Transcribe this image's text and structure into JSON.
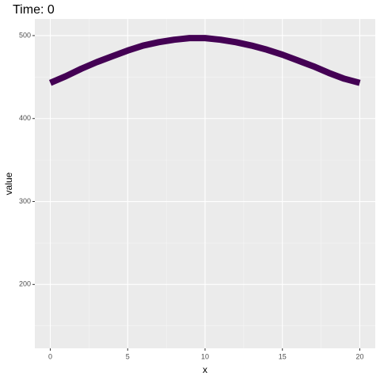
{
  "chart_data": {
    "type": "line",
    "title": "Time: 0",
    "x_label": "x",
    "y_label": "value",
    "x": [
      0,
      1,
      2,
      3,
      4,
      5,
      6,
      7,
      8,
      9,
      10,
      11,
      12,
      13,
      14,
      15,
      16,
      17,
      18,
      19,
      20
    ],
    "series": [
      {
        "color": "#440154",
        "values": [
          443,
          451,
          460,
          468,
          475,
          482,
          488,
          492,
          495,
          497,
          497,
          495,
          492,
          488,
          483,
          477,
          470,
          463,
          455,
          448,
          443
        ]
      }
    ],
    "xlim": [
      -1,
      21
    ],
    "ylim": [
      123,
      520
    ],
    "xticks": [
      0,
      5,
      10,
      15,
      20
    ],
    "yticks": [
      200,
      300,
      400,
      500
    ],
    "grid": true
  }
}
